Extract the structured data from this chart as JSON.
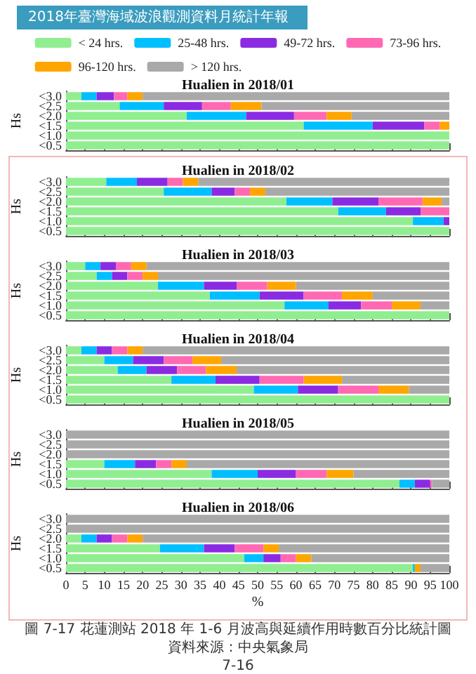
{
  "chart_data": [
    {
      "type": "bar",
      "orientation": "horizontal",
      "stacked": true,
      "title": "Hualien in 2018/01",
      "ylabel": "Hs",
      "categories": [
        "<3.0",
        "<2.5",
        "<2.0",
        "<1.5",
        "<1.0",
        "<0.5"
      ],
      "xlim": [
        0,
        100
      ],
      "xticks": [
        0,
        5,
        10,
        15,
        20,
        25,
        30,
        35,
        40,
        45,
        50,
        55,
        60,
        65,
        70,
        75,
        80,
        85,
        90,
        95,
        100
      ],
      "tick_labels": "y",
      "legend": "top",
      "annotations": [
        "2018年臺灣海域波浪觀測資料月統計年報"
      ],
      "series": [
        {
          "name": "< 24 hrs.",
          "color": "#90ee90",
          "values": [
            4,
            14,
            31.5,
            62,
            100,
            100
          ]
        },
        {
          "name": "25-48 hrs.",
          "color": "#00bfff",
          "values": [
            4,
            11.5,
            15.5,
            18,
            0,
            0
          ]
        },
        {
          "name": "49-72 hrs.",
          "color": "#8a2be2",
          "values": [
            4.5,
            10,
            12.5,
            13.5,
            0,
            0
          ]
        },
        {
          "name": "73-96 hrs.",
          "color": "#ff69b4",
          "values": [
            3.5,
            7.5,
            8.5,
            4,
            0,
            0
          ]
        },
        {
          "name": "96-120 hrs.",
          "color": "#ffa500",
          "values": [
            4,
            8,
            6.5,
            2.5,
            0,
            0
          ]
        },
        {
          "name": "> 120 hrs.",
          "color": "#a9a9a9",
          "values": [
            80,
            49,
            25.5,
            0,
            0,
            0
          ]
        }
      ]
    },
    {
      "type": "bar",
      "orientation": "horizontal",
      "stacked": true,
      "title": "Hualien in 2018/02",
      "ylabel": "Hs",
      "categories": [
        "<3.0",
        "<2.5",
        "<2.0",
        "<1.5",
        "<1.0",
        "<0.5"
      ],
      "xlim": [
        0,
        100
      ],
      "xticks": [
        0,
        5,
        10,
        15,
        20,
        25,
        30,
        35,
        40,
        45,
        50,
        55,
        60,
        65,
        70,
        75,
        80,
        85,
        90,
        95,
        100
      ],
      "tick_labels": "y",
      "series": [
        {
          "color": "#90ee90",
          "values": [
            10.5,
            25.5,
            57.5,
            71,
            90.5,
            100
          ]
        },
        {
          "color": "#00bfff",
          "values": [
            8,
            12.5,
            12,
            12.5,
            8,
            0
          ]
        },
        {
          "color": "#8a2be2",
          "values": [
            8,
            6,
            12,
            9,
            1.5,
            0
          ]
        },
        {
          "color": "#ff69b4",
          "values": [
            4,
            4,
            11.5,
            7.5,
            0,
            0
          ]
        },
        {
          "color": "#ffa500",
          "values": [
            4,
            4,
            5,
            0,
            0,
            0
          ]
        },
        {
          "color": "#a9a9a9",
          "values": [
            65.5,
            48,
            2,
            0,
            0,
            0
          ]
        }
      ]
    },
    {
      "type": "bar",
      "orientation": "horizontal",
      "stacked": true,
      "title": "Hualien in 2018/03",
      "ylabel": "Hs",
      "categories": [
        "<3.0",
        "<2.5",
        "<2.0",
        "<1.5",
        "<1.0",
        "<0.5"
      ],
      "xlim": [
        0,
        100
      ],
      "xticks": [
        0,
        5,
        10,
        15,
        20,
        25,
        30,
        35,
        40,
        45,
        50,
        55,
        60,
        65,
        70,
        75,
        80,
        85,
        90,
        95,
        100
      ],
      "tick_labels": "y",
      "series": [
        {
          "color": "#90ee90",
          "values": [
            5,
            8,
            24,
            37.5,
            57,
            100
          ]
        },
        {
          "color": "#00bfff",
          "values": [
            4,
            4,
            12,
            13,
            11.5,
            0
          ]
        },
        {
          "color": "#8a2be2",
          "values": [
            4,
            4,
            8.5,
            11.5,
            8.5,
            0
          ]
        },
        {
          "color": "#ff69b4",
          "values": [
            4,
            4,
            8,
            10,
            8,
            0
          ]
        },
        {
          "color": "#ffa500",
          "values": [
            4,
            4,
            7.5,
            8,
            7.5,
            0
          ]
        },
        {
          "color": "#a9a9a9",
          "values": [
            79,
            76,
            40,
            20,
            7.5,
            0
          ]
        }
      ]
    },
    {
      "type": "bar",
      "orientation": "horizontal",
      "stacked": true,
      "title": "Hualien in 2018/04",
      "ylabel": "Hs",
      "categories": [
        "<3.0",
        "<2.5",
        "<2.0",
        "<1.5",
        "<1.0",
        "<0.5"
      ],
      "xlim": [
        0,
        100
      ],
      "xticks": [
        0,
        5,
        10,
        15,
        20,
        25,
        30,
        35,
        40,
        45,
        50,
        55,
        60,
        65,
        70,
        75,
        80,
        85,
        90,
        95,
        100
      ],
      "tick_labels": "y",
      "series": [
        {
          "color": "#90ee90",
          "values": [
            4,
            10,
            13.5,
            27.5,
            49,
            100
          ]
        },
        {
          "color": "#00bfff",
          "values": [
            4,
            7.5,
            7.5,
            11.5,
            11.5,
            0
          ]
        },
        {
          "color": "#8a2be2",
          "values": [
            4,
            8,
            8,
            11.5,
            10.5,
            0
          ]
        },
        {
          "color": "#ff69b4",
          "values": [
            4,
            7.5,
            7.5,
            11.5,
            10.5,
            0
          ]
        },
        {
          "color": "#ffa500",
          "values": [
            4,
            7.5,
            8,
            10,
            8,
            0
          ]
        },
        {
          "color": "#a9a9a9",
          "values": [
            80,
            59.5,
            55.5,
            28,
            10.5,
            0
          ]
        }
      ]
    },
    {
      "type": "bar",
      "orientation": "horizontal",
      "stacked": true,
      "title": "Hualien in 2018/05",
      "ylabel": "Hs",
      "categories": [
        "<3.0",
        "<2.5",
        "<2.0",
        "<1.5",
        "<1.0",
        "<0.5"
      ],
      "xlim": [
        0,
        100
      ],
      "xticks": [
        0,
        5,
        10,
        15,
        20,
        25,
        30,
        35,
        40,
        45,
        50,
        55,
        60,
        65,
        70,
        75,
        80,
        85,
        90,
        95,
        100
      ],
      "tick_labels": "y",
      "series": [
        {
          "color": "#90ee90",
          "values": [
            0,
            0,
            0,
            10,
            38,
            87
          ]
        },
        {
          "color": "#00bfff",
          "values": [
            0,
            0,
            0,
            8,
            12,
            4
          ]
        },
        {
          "color": "#8a2be2",
          "values": [
            0,
            0,
            0,
            5.5,
            10,
            4
          ]
        },
        {
          "color": "#ff69b4",
          "values": [
            0,
            0,
            0,
            4,
            8,
            0.5
          ]
        },
        {
          "color": "#ffa500",
          "values": [
            0,
            0,
            0,
            4,
            7,
            0
          ]
        },
        {
          "color": "#a9a9a9",
          "values": [
            100,
            100,
            100,
            68.5,
            25,
            4.5
          ]
        }
      ]
    },
    {
      "type": "bar",
      "orientation": "horizontal",
      "stacked": true,
      "title": "Hualien in 2018/06",
      "ylabel": "Hs",
      "xlabel": "%",
      "categories": [
        "<3.0",
        "<2.5",
        "<2.0",
        "<1.5",
        "<1.0",
        "<0.5"
      ],
      "xlim": [
        0,
        100
      ],
      "xticks": [
        0,
        5,
        10,
        15,
        20,
        25,
        30,
        35,
        40,
        45,
        50,
        55,
        60,
        65,
        70,
        75,
        80,
        85,
        90,
        95,
        100
      ],
      "annotations": [
        "圖 7-17 花蓮測站 2018 年 1-6 月波高與延續作用時數百分比統計圖",
        "資料來源：中央氣象局",
        "7-16"
      ],
      "series": [
        {
          "color": "#90ee90",
          "values": [
            0,
            0,
            4,
            24.5,
            46.5,
            90.5
          ]
        },
        {
          "color": "#00bfff",
          "values": [
            0,
            0,
            4,
            11.5,
            5,
            0.5
          ]
        },
        {
          "color": "#8a2be2",
          "values": [
            0,
            0,
            4,
            8,
            4.5,
            0
          ]
        },
        {
          "color": "#ff69b4",
          "values": [
            0,
            0,
            4,
            7.5,
            4,
            0
          ]
        },
        {
          "color": "#ffa500",
          "values": [
            0,
            0,
            4,
            4,
            4,
            1.5
          ]
        },
        {
          "color": "#a9a9a9",
          "values": [
            100,
            100,
            80,
            44.5,
            36,
            7.5
          ]
        }
      ]
    }
  ]
}
